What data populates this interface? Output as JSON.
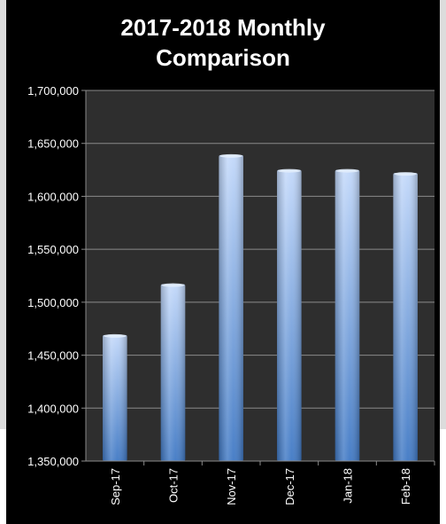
{
  "chart_data": {
    "type": "bar",
    "title": "2017-2018 Monthly Comparison",
    "title_lines": [
      "2017-2018 Monthly",
      "Comparison"
    ],
    "categories": [
      "Sep-17",
      "Oct-17",
      "Nov-17",
      "Dec-17",
      "Jan-18",
      "Feb-18"
    ],
    "values": [
      1469000,
      1517000,
      1639000,
      1625000,
      1625000,
      1622000
    ],
    "ylim": [
      1350000,
      1700000
    ],
    "yticks": [
      1350000,
      1400000,
      1450000,
      1500000,
      1550000,
      1600000,
      1650000,
      1700000
    ],
    "ytick_labels": [
      "1,350,000",
      "1,400,000",
      "1,450,000",
      "1,500,000",
      "1,550,000",
      "1,600,000",
      "1,650,000",
      "1,700,000"
    ],
    "xlabel": "",
    "ylabel": "",
    "grid": true,
    "legend": "none",
    "colors": {
      "background": "#000000",
      "plot_area": "#2e2e2e",
      "bar_light": "#c2d8fa",
      "bar_dark": "#3f78c4",
      "gridline": "#8a8a8a",
      "text": "#ffffff"
    }
  }
}
